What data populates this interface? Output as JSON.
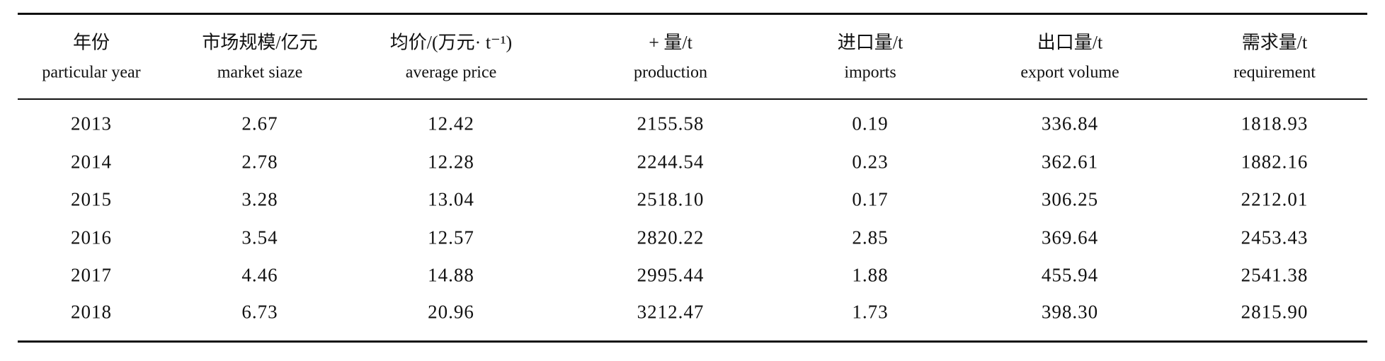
{
  "table": {
    "header": [
      {
        "zh": "年份",
        "en": "particular year"
      },
      {
        "zh": "市场规模/亿元",
        "en": "market siaze"
      },
      {
        "zh": "均价/(万元· t⁻¹)",
        "en": "average price"
      },
      {
        "zh": "+ 量/t",
        "en": "production"
      },
      {
        "zh": "进口量/t",
        "en": "imports"
      },
      {
        "zh": "出口量/t",
        "en": "export volume"
      },
      {
        "zh": "需求量/t",
        "en": "requirement"
      }
    ],
    "rows": [
      [
        "2013",
        "2.67",
        "12.42",
        "2155.58",
        "0.19",
        "336.84",
        "1818.93"
      ],
      [
        "2014",
        "2.78",
        "12.28",
        "2244.54",
        "0.23",
        "362.61",
        "1882.16"
      ],
      [
        "2015",
        "3.28",
        "13.04",
        "2518.10",
        "0.17",
        "306.25",
        "2212.01"
      ],
      [
        "2016",
        "3.54",
        "12.57",
        "2820.22",
        "2.85",
        "369.64",
        "2453.43"
      ],
      [
        "2017",
        "4.46",
        "14.88",
        "2995.44",
        "1.88",
        "455.94",
        "2541.38"
      ],
      [
        "2018",
        "6.73",
        "20.96",
        "3212.47",
        "1.73",
        "398.30",
        "2815.90"
      ]
    ]
  }
}
